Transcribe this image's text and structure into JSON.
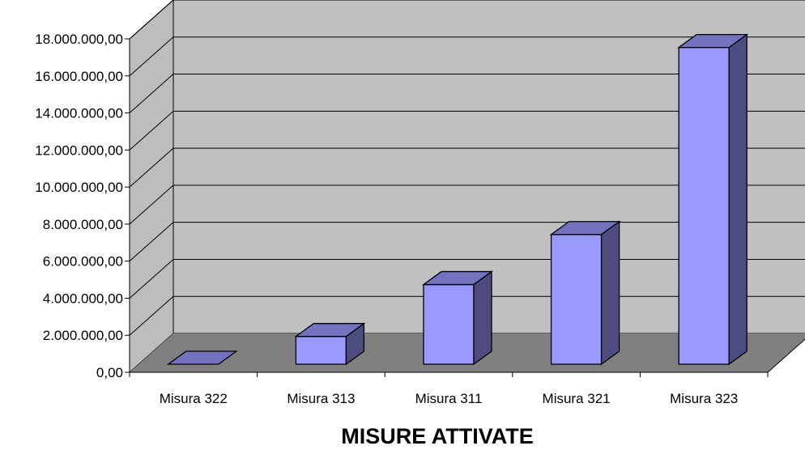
{
  "chart_data": {
    "type": "bar",
    "categories": [
      "Misura 322",
      "Misura 313",
      "Misura 311",
      "Misura 321",
      "Misura 323"
    ],
    "values": [
      0,
      1500000,
      4300000,
      7000000,
      17100000
    ],
    "xlabel": "MISURE ATTIVATE",
    "ylabel": "",
    "ylim": [
      0,
      18000000
    ],
    "yticks": [
      "0,00",
      "2.000.000,00",
      "4.000.000,00",
      "6.000.000,00",
      "8.000.000,00",
      "10.000.000,00",
      "12.000.000,00",
      "14.000.000,00",
      "16.000.000,00",
      "18.000.000,00"
    ],
    "grid": true,
    "legend": "none",
    "colors": {
      "bar_front": "#9999ff",
      "bar_side": "#4c4c80",
      "bar_top": "#7373bf",
      "wall": "#c0c0c0",
      "floor": "#808080",
      "side_wall": "#bdbdbd"
    }
  }
}
